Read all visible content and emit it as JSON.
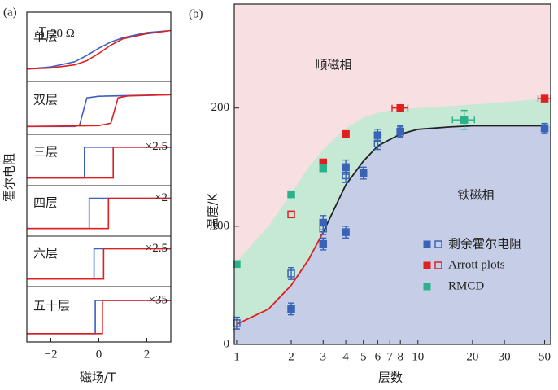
{
  "chart_data": [
    {
      "type": "loops",
      "title": "(a)",
      "xlabel": "磁场/T",
      "ylabel": "霍尔电阻",
      "scale_bar": "20 Ω",
      "xlim": [
        -3,
        3
      ],
      "ylim": [
        -1,
        1
      ],
      "xticks": [
        {
          "value": -2,
          "label": "−2"
        },
        0,
        2
      ],
      "panels": [
        {
          "label": "单层",
          "multiplier": null,
          "series": [
            {
              "color": "#3a5fc0",
              "x": [
                -3,
                -2,
                -1,
                -0.5,
                0,
                0.5,
                1,
                2,
                3
              ],
              "values": [
                -0.9,
                -0.8,
                -0.55,
                -0.25,
                0.1,
                0.4,
                0.6,
                0.85,
                0.95
              ]
            },
            {
              "color": "#e02020",
              "x": [
                -3,
                -2,
                -1,
                -0.5,
                0,
                0.5,
                1,
                2,
                3
              ],
              "values": [
                -0.9,
                -0.85,
                -0.7,
                -0.5,
                -0.15,
                0.25,
                0.55,
                0.8,
                0.95
              ]
            }
          ]
        },
        {
          "label": "双层",
          "multiplier": null,
          "series": [
            {
              "color": "#3a5fc0",
              "x": [
                -3,
                -1,
                -0.8,
                -0.5,
                0,
                3
              ],
              "values": [
                -1,
                -1,
                -0.9,
                0.8,
                0.9,
                1
              ]
            },
            {
              "color": "#e02020",
              "x": [
                -3,
                0,
                0.5,
                0.8,
                1.2,
                3
              ],
              "values": [
                -1,
                -0.95,
                -0.8,
                0.8,
                0.92,
                1
              ]
            }
          ]
        },
        {
          "label": "三层",
          "multiplier": "×2.5",
          "series": [
            {
              "color": "#3a5fc0",
              "x": [
                -3,
                -0.6,
                -0.6,
                3
              ],
              "values": [
                -1,
                -1,
                1,
                1
              ]
            },
            {
              "color": "#e02020",
              "x": [
                -3,
                0.6,
                0.6,
                3
              ],
              "values": [
                -1,
                -1,
                1,
                1
              ]
            }
          ]
        },
        {
          "label": "四层",
          "multiplier": "×2",
          "series": [
            {
              "color": "#3a5fc0",
              "x": [
                -3,
                -0.4,
                -0.4,
                3
              ],
              "values": [
                -1,
                -1,
                1,
                1
              ]
            },
            {
              "color": "#e02020",
              "x": [
                -3,
                0.4,
                0.4,
                3
              ],
              "values": [
                -1,
                -1,
                1,
                1
              ]
            }
          ]
        },
        {
          "label": "六层",
          "multiplier": "×2.5",
          "series": [
            {
              "color": "#3a5fc0",
              "x": [
                -3,
                -0.2,
                -0.2,
                3
              ],
              "values": [
                -1,
                -1,
                1,
                1
              ]
            },
            {
              "color": "#e02020",
              "x": [
                -3,
                0.2,
                0.2,
                3
              ],
              "values": [
                -1,
                -1,
                1,
                1
              ]
            }
          ]
        },
        {
          "label": "五十层",
          "multiplier": "×35",
          "series": [
            {
              "color": "#3a5fc0",
              "x": [
                -3,
                -0.15,
                -0.15,
                3
              ],
              "values": [
                -1,
                -1,
                1,
                1
              ]
            },
            {
              "color": "#e02020",
              "x": [
                -3,
                0.15,
                0.15,
                3
              ],
              "values": [
                -1,
                -1,
                1,
                1
              ]
            }
          ]
        }
      ]
    },
    {
      "type": "phase",
      "title": "(b)",
      "xlabel": "层数",
      "ylabel": "温度/K",
      "log_x": true,
      "xlim": [
        0.97,
        54
      ],
      "ylim": [
        0,
        288
      ],
      "xticks": [
        1,
        2,
        3,
        4,
        5,
        6,
        7,
        8,
        10,
        20,
        30,
        50
      ],
      "yticks": [
        0,
        100,
        200
      ],
      "phases": [
        {
          "label": "顺磁相",
          "color": "#f7dfe2"
        },
        {
          "label": "铁磁相",
          "color": "#c5cee6"
        }
      ],
      "crossover_band": {
        "color": "#c6e9d6",
        "x": [
          1,
          1.5,
          2,
          2.5,
          3,
          4,
          5,
          6,
          8,
          10,
          20,
          30,
          50
        ],
        "values": [
          70,
          100,
          128,
          150,
          165,
          183,
          192,
          196,
          199,
          200,
          203,
          205,
          208
        ]
      },
      "boundary_lines": [
        {
          "color": "#e02020",
          "x": [
            1,
            1.5,
            2,
            2.5,
            3
          ],
          "values": [
            17,
            30,
            50,
            72,
            95
          ]
        },
        {
          "color": "#222222",
          "x": [
            3,
            4,
            5,
            6,
            8,
            10,
            15,
            20,
            30,
            50
          ],
          "values": [
            95,
            135,
            155,
            168,
            178,
            182,
            184,
            185,
            185,
            185
          ]
        }
      ],
      "series": [
        {
          "name": "剩余霍尔电阻",
          "color": "#3a63b8",
          "x": [
            1,
            2,
            2,
            3,
            3,
            3,
            4,
            4,
            4,
            5,
            6,
            6,
            8,
            8,
            50
          ],
          "values": [
            18,
            60,
            30,
            103,
            98,
            85,
            150,
            143,
            95,
            145,
            177,
            170,
            180,
            180,
            183
          ],
          "yerr": [
            5,
            5,
            5,
            6,
            5,
            5,
            6,
            6,
            5,
            5,
            5,
            5,
            5,
            4,
            4
          ],
          "xerr": [
            null,
            null,
            null,
            null,
            null,
            null,
            null,
            null,
            null,
            null,
            null,
            null,
            null,
            null,
            null
          ],
          "open": [
            true,
            true,
            false,
            false,
            true,
            false,
            false,
            true,
            false,
            false,
            false,
            true,
            false,
            true,
            false
          ]
        },
        {
          "name": "Arrott plots",
          "color": "#e02020",
          "x": [
            2,
            3,
            4,
            8,
            50
          ],
          "values": [
            110,
            154,
            178,
            200,
            208
          ],
          "yerr": [
            null,
            null,
            null,
            null,
            null
          ],
          "xerr": [
            null,
            null,
            null,
            0.8,
            4
          ],
          "open": [
            true,
            false,
            false,
            false,
            false
          ]
        },
        {
          "name": "RMCD",
          "color": "#2ab38a",
          "x": [
            1,
            2,
            3,
            18
          ],
          "values": [
            68,
            127,
            149,
            190
          ],
          "yerr": [
            null,
            null,
            null,
            8
          ],
          "xerr": [
            null,
            null,
            null,
            2.5
          ],
          "open": [
            false,
            false,
            false,
            false
          ]
        }
      ]
    }
  ]
}
